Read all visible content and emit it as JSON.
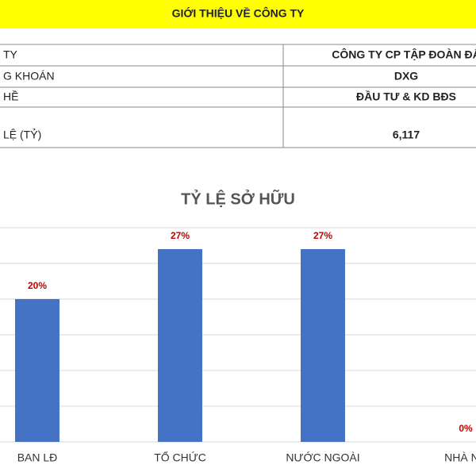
{
  "header": {
    "title": "GIỚI THIỆU VỀ CÔNG TY"
  },
  "table": {
    "rows": [
      [
        "TY",
        "CÔNG TY CP TẬP ĐOÀN ĐẤ"
      ],
      [
        "G KHOÁN",
        "DXG"
      ],
      [
        "HỀ",
        "ĐẦU TƯ & KD BĐS"
      ],
      [
        "LỆ (TỶ)",
        "6,117"
      ]
    ]
  },
  "chart_data": {
    "type": "bar",
    "title": "TỶ LỆ SỞ HỮU",
    "categories": [
      "BAN LĐ",
      "TỔ CHỨC",
      "NƯỚC NGOÀI",
      "NHÀ NU"
    ],
    "values": [
      20,
      27,
      27,
      0
    ],
    "value_labels": [
      "20%",
      "27%",
      "27%",
      "0%"
    ],
    "color": "#4472c4",
    "label_color": "#c00000",
    "ylim": [
      0,
      30
    ],
    "yticks": [
      0,
      5,
      10,
      15,
      20,
      25,
      30
    ],
    "grid": true
  }
}
